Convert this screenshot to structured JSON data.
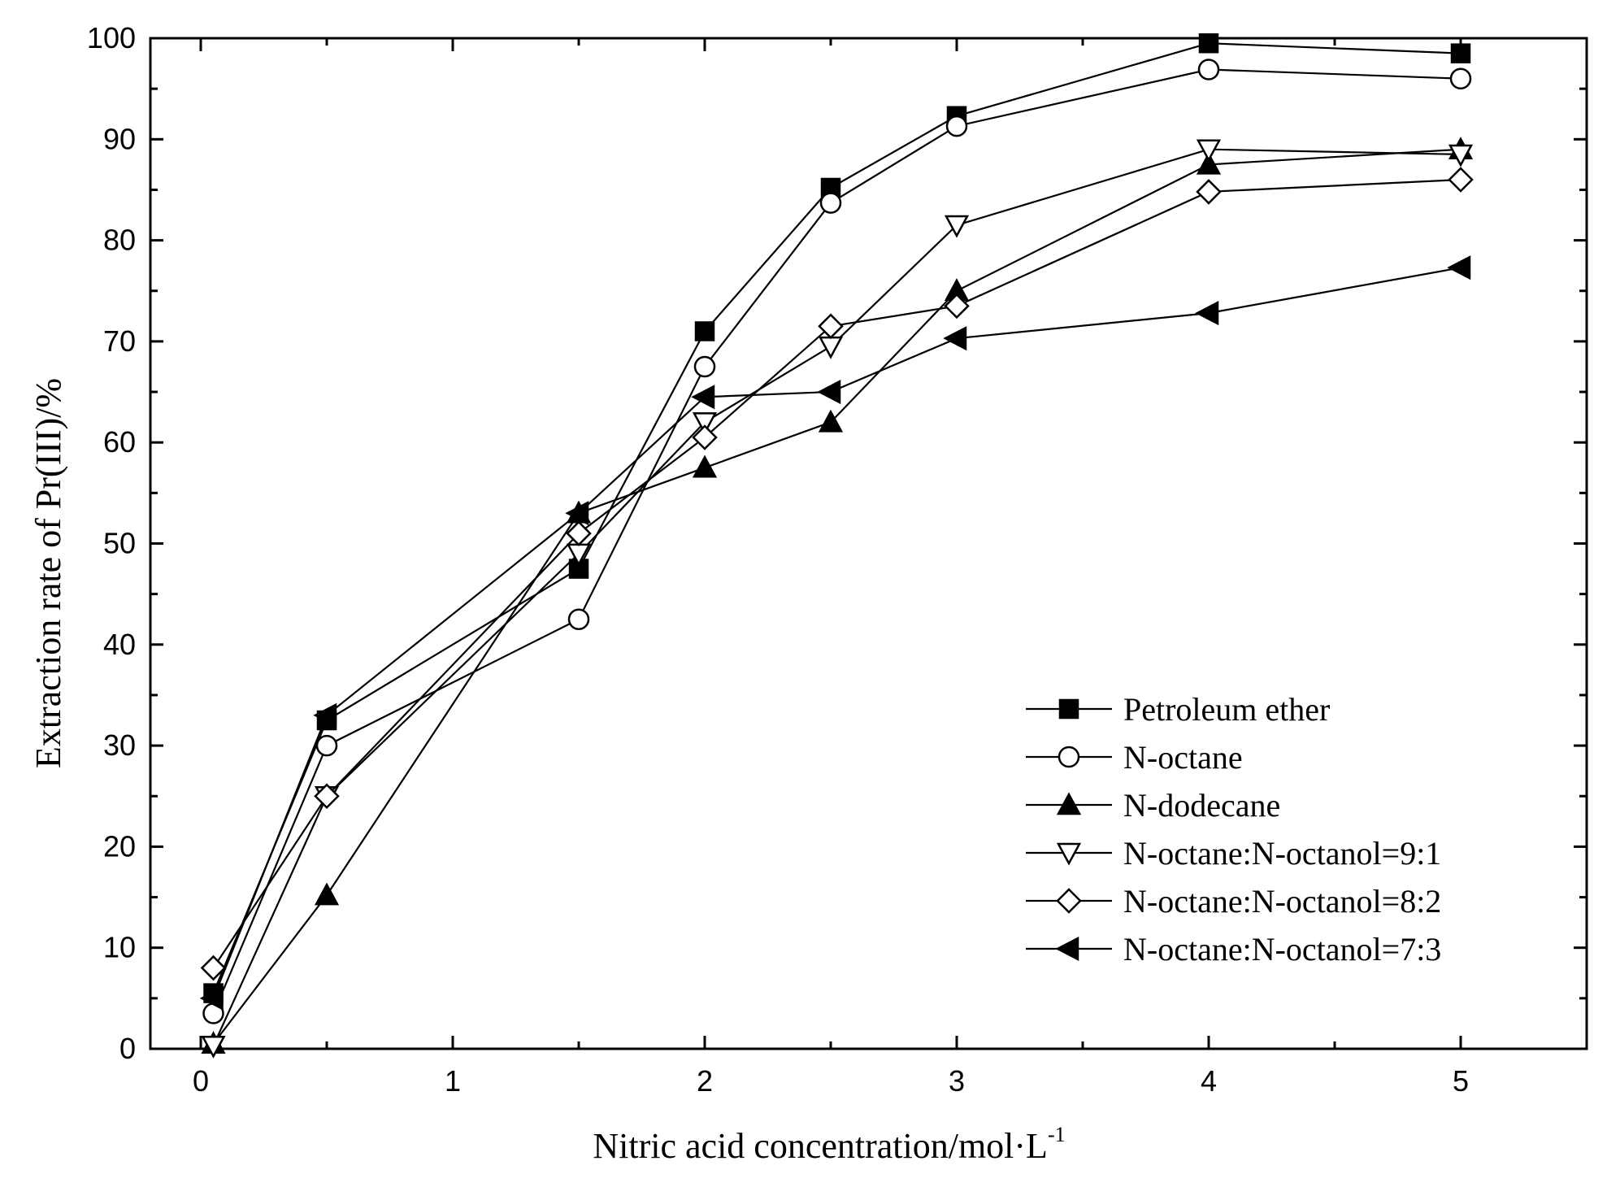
{
  "chart_data": {
    "type": "line",
    "title": "",
    "xlabel": "Nitric acid concentration/mol·L",
    "xlabel_superscript": "-1",
    "ylabel": "Extraction rate of Pr(III)/%",
    "xlim": [
      -0.2,
      5.5
    ],
    "ylim": [
      0,
      100
    ],
    "xticks": [
      0,
      1,
      2,
      3,
      4,
      5
    ],
    "yticks": [
      0,
      10,
      20,
      30,
      40,
      50,
      60,
      70,
      80,
      90,
      100
    ],
    "x": [
      0.05,
      0.5,
      1.5,
      2,
      2.5,
      3,
      4,
      5
    ],
    "legend_position": "lower-right",
    "series": [
      {
        "name": "Petroleum ether",
        "marker": "filled-square",
        "values": [
          5.5,
          32.5,
          47.5,
          71,
          85.2,
          92.3,
          99.5,
          98.5
        ]
      },
      {
        "name": "N-octane",
        "marker": "open-circle",
        "values": [
          3.5,
          30,
          42.5,
          67.5,
          83.7,
          91.3,
          96.9,
          96
        ]
      },
      {
        "name": "N-dodecane",
        "marker": "filled-triangle-up",
        "values": [
          0.5,
          15.2,
          53,
          57.5,
          62,
          75,
          87.5,
          89
        ]
      },
      {
        "name": "N-octane:N-octanol=9:1",
        "marker": "open-triangle-down",
        "values": [
          0.3,
          25,
          49,
          62,
          69.5,
          81.5,
          89,
          88.5
        ]
      },
      {
        "name": "N-octane:N-octanol=8:2",
        "marker": "open-diamond",
        "values": [
          8,
          25,
          51,
          60.5,
          71.5,
          73.5,
          84.8,
          86
        ]
      },
      {
        "name": "N-octane:N-octanol=7:3",
        "marker": "filled-triangle-left",
        "values": [
          5,
          33,
          53,
          64.5,
          65,
          70.3,
          72.8,
          77.3
        ]
      }
    ]
  }
}
